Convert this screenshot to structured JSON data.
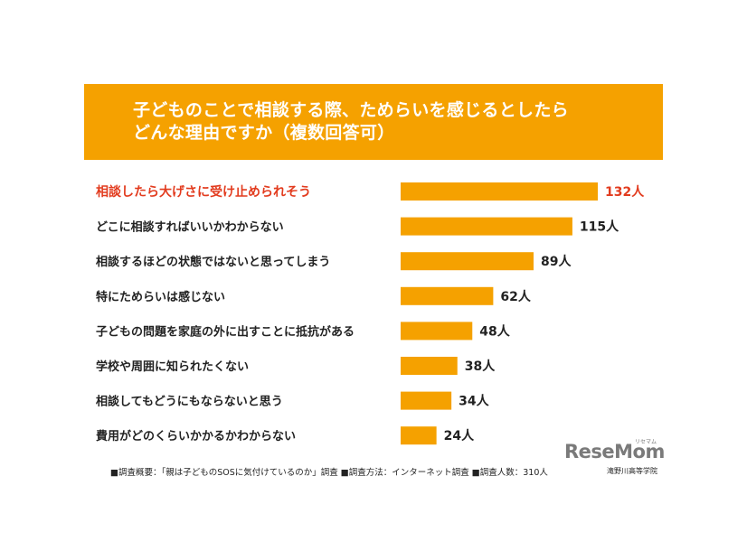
{
  "header": {
    "title_line1": "子どものことで相談する際、ためらいを感じるとしたら",
    "title_line2": "どんな理由ですか（複数回答可）"
  },
  "colors": {
    "bar": "#f5a100",
    "header_bg": "#f5a100",
    "highlight_text": "#e23b1e"
  },
  "chart_data": {
    "type": "bar",
    "orientation": "horizontal",
    "title": "子どものことで相談する際、ためらいを感じるとしたらどんな理由ですか（複数回答可）",
    "unit": "人",
    "xlim": [
      0,
      132
    ],
    "grid": false,
    "categories": [
      "相談したら大げさに受け止められそう",
      "どこに相談すればいいかわからない",
      "相談するほどの状態ではないと思ってしまう",
      "特にためらいは感じない",
      "子どもの問題を家庭の外に出すことに抵抗がある",
      "学校や周囲に知られたくない",
      "相談してもどうにもならないと思う",
      "費用がどのくらいかかるかわからない"
    ],
    "values": [
      132,
      115,
      89,
      62,
      48,
      38,
      34,
      24
    ],
    "value_labels": [
      "132人",
      "115人",
      "89人",
      "62人",
      "48人",
      "38人",
      "34人",
      "24人"
    ],
    "highlight_index": 0
  },
  "footnote": "■調査概要：「親は子どものSOSに気付けているのか」調査 ■調査方法：インターネット調査 ■調査人数：310人",
  "logo": {
    "text": "ReseMom",
    "kana": "リセマム",
    "school": "滝野川高等学院"
  }
}
